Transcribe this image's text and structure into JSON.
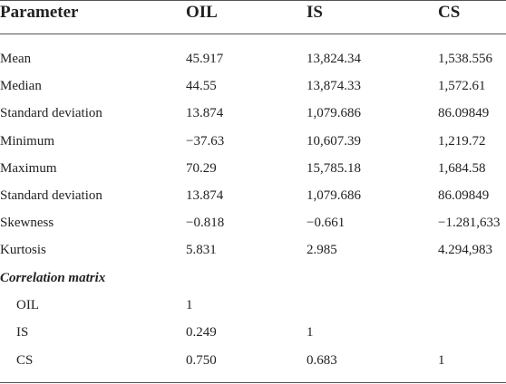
{
  "table": {
    "header": [
      "Parameter",
      "OIL",
      "IS",
      "CS"
    ],
    "rows": [
      [
        "Mean",
        "45.917",
        "13,824.34",
        "1,538.556"
      ],
      [
        "Median",
        "44.55",
        "13,874.33",
        "1,572.61"
      ],
      [
        "Standard deviation",
        "13.874",
        "1,079.686",
        "86.09849"
      ],
      [
        "Minimum",
        "−37.63",
        "10,607.39",
        "1,219.72"
      ],
      [
        "Maximum",
        "70.29",
        "15,785.18",
        "1,684.58"
      ],
      [
        "Standard deviation",
        "13.874",
        "1,079.686",
        "86.09849"
      ],
      [
        "Skewness",
        "−0.818",
        "−0.661",
        "−1.281,633"
      ],
      [
        "Kurtosis",
        "5.831",
        "2.985",
        "4.294,983"
      ]
    ],
    "section_title": "Correlation matrix",
    "correlation_rows": [
      [
        "OIL",
        "1"
      ],
      [
        "IS",
        "0.249",
        "1"
      ],
      [
        "CS",
        "0.750",
        "0.683",
        "1"
      ]
    ]
  }
}
